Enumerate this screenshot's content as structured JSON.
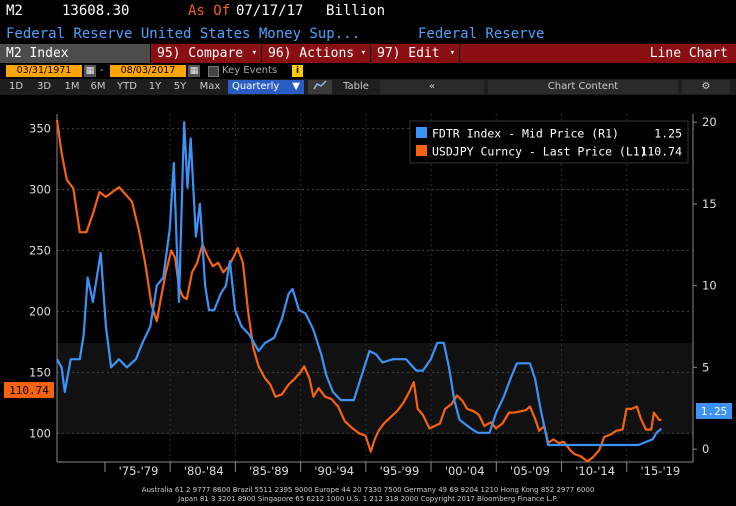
{
  "header": {
    "ticker": "M2",
    "value": "13608.30",
    "as_of_label": "As Of",
    "as_of_date": "07/17/17",
    "unit": "Billion",
    "description": "Federal Reserve United States Money Sup...",
    "source": "Federal Reserve"
  },
  "toolbar": {
    "security": "M2 Index",
    "compare": "95) Compare",
    "actions": "96) Actions",
    "edit": "97) Edit",
    "chart_type": "Line Chart"
  },
  "date_bar": {
    "start": "03/31/1971",
    "end": "08/03/2017",
    "key_events": "Key Events"
  },
  "period_bar": {
    "buttons": [
      "1D",
      "3D",
      "1M",
      "6M",
      "YTD",
      "1Y",
      "5Y",
      "Max"
    ],
    "frequency": "Quarterly",
    "table": "Table",
    "back": "«",
    "chart_content": "Chart Content",
    "settings_icon": "gear-icon"
  },
  "legend": [
    {
      "label": "FDTR Index - Mid Price (R1)",
      "value": "1.25",
      "color": "#3d93f5"
    },
    {
      "label": "USDJPY Curncy - Last Price (L1)",
      "value": "110.74",
      "color": "#f5630f"
    }
  ],
  "badges": {
    "left": "110.74",
    "right": "1.25"
  },
  "colors": {
    "blue": "#3d93f5",
    "orange": "#f5630f",
    "header_red": "#8a0f13",
    "accent_blue": "#4aa3ff",
    "amber": "#ffa500"
  },
  "footer": {
    "line1": "Australia 61 2 9777 8600 Brazil 5511 2395 9000 Europe 44 20 7330 7500 Germany 49 69 9204 1210 Hong Kong 852 2977 6000",
    "line2": "Japan 81 3 3201 8900        Singapore 65 6212 1000        U.S. 1 212 318 2000        Copyright 2017 Bloomberg Finance L.P."
  },
  "chart_data": {
    "type": "line",
    "x_range": [
      1971.25,
      2020.0
    ],
    "x_ticks": [
      "'75-'79",
      "'80-'84",
      "'85-'89",
      "'90-'94",
      "'95-'99",
      "'00-'04",
      "'05-'09",
      "'10-'14",
      "'15-'19"
    ],
    "left_axis": {
      "range": [
        83,
        362
      ],
      "ticks": [
        100,
        150,
        200,
        250,
        300,
        350
      ]
    },
    "right_axis": {
      "range": [
        -0.3,
        20.5
      ],
      "ticks": [
        0,
        5,
        10,
        15,
        20
      ]
    },
    "series": [
      {
        "name": "USDJPY Curncy - Last Price (L1)",
        "axis": "left",
        "color": "#f5630f",
        "points": [
          [
            1971.25,
            357
          ],
          [
            1971.6,
            330
          ],
          [
            1972.0,
            308
          ],
          [
            1972.5,
            301
          ],
          [
            1973.0,
            265
          ],
          [
            1973.5,
            265
          ],
          [
            1974.0,
            280
          ],
          [
            1974.5,
            298
          ],
          [
            1975.0,
            294
          ],
          [
            1975.5,
            298
          ],
          [
            1976.0,
            302
          ],
          [
            1976.5,
            296
          ],
          [
            1977.0,
            290
          ],
          [
            1977.5,
            268
          ],
          [
            1978.0,
            240
          ],
          [
            1978.5,
            205
          ],
          [
            1978.9,
            192
          ],
          [
            1979.2,
            210
          ],
          [
            1979.6,
            232
          ],
          [
            1980.0,
            250
          ],
          [
            1980.3,
            244
          ],
          [
            1980.6,
            220
          ],
          [
            1980.9,
            212
          ],
          [
            1981.2,
            210
          ],
          [
            1981.6,
            232
          ],
          [
            1982.0,
            240
          ],
          [
            1982.4,
            255
          ],
          [
            1982.8,
            245
          ],
          [
            1983.2,
            237
          ],
          [
            1983.6,
            240
          ],
          [
            1984.0,
            232
          ],
          [
            1984.4,
            237
          ],
          [
            1984.8,
            245
          ],
          [
            1985.1,
            252
          ],
          [
            1985.5,
            240
          ],
          [
            1985.9,
            200
          ],
          [
            1986.3,
            170
          ],
          [
            1986.7,
            155
          ],
          [
            1987.2,
            145
          ],
          [
            1987.6,
            140
          ],
          [
            1988.0,
            130
          ],
          [
            1988.5,
            132
          ],
          [
            1989.0,
            140
          ],
          [
            1989.5,
            145
          ],
          [
            1989.9,
            150
          ],
          [
            1990.2,
            155
          ],
          [
            1990.6,
            145
          ],
          [
            1990.9,
            130
          ],
          [
            1991.3,
            137
          ],
          [
            1991.8,
            130
          ],
          [
            1992.3,
            128
          ],
          [
            1992.8,
            122
          ],
          [
            1993.3,
            110
          ],
          [
            1993.8,
            105
          ],
          [
            1994.4,
            100
          ],
          [
            1994.9,
            98
          ],
          [
            1995.3,
            85
          ],
          [
            1995.6,
            95
          ],
          [
            1995.9,
            102
          ],
          [
            1996.3,
            108
          ],
          [
            1996.8,
            113
          ],
          [
            1997.3,
            118
          ],
          [
            1997.8,
            125
          ],
          [
            1998.3,
            135
          ],
          [
            1998.6,
            142
          ],
          [
            1998.9,
            120
          ],
          [
            1999.3,
            115
          ],
          [
            1999.8,
            104
          ],
          [
            2000.2,
            106
          ],
          [
            2000.6,
            108
          ],
          [
            2001.0,
            120
          ],
          [
            2001.5,
            124
          ],
          [
            2001.9,
            131
          ],
          [
            2002.3,
            127
          ],
          [
            2002.7,
            120
          ],
          [
            2003.2,
            118
          ],
          [
            2003.6,
            115
          ],
          [
            2004.0,
            106
          ],
          [
            2004.5,
            109
          ],
          [
            2004.9,
            104
          ],
          [
            2005.4,
            108
          ],
          [
            2005.9,
            117
          ],
          [
            2006.3,
            117
          ],
          [
            2006.8,
            118
          ],
          [
            2007.2,
            119
          ],
          [
            2007.5,
            122
          ],
          [
            2007.9,
            112
          ],
          [
            2008.2,
            102
          ],
          [
            2008.6,
            106
          ],
          [
            2008.9,
            92
          ],
          [
            2009.3,
            95
          ],
          [
            2009.7,
            92
          ],
          [
            2010.1,
            93
          ],
          [
            2010.6,
            86
          ],
          [
            2010.9,
            83
          ],
          [
            2011.4,
            81
          ],
          [
            2011.9,
            77
          ],
          [
            2012.3,
            80
          ],
          [
            2012.8,
            86
          ],
          [
            2013.2,
            97
          ],
          [
            2013.7,
            99
          ],
          [
            2014.1,
            102
          ],
          [
            2014.6,
            103
          ],
          [
            2014.9,
            120
          ],
          [
            2015.3,
            120
          ],
          [
            2015.7,
            122
          ],
          [
            2016.0,
            112
          ],
          [
            2016.4,
            103
          ],
          [
            2016.8,
            103
          ],
          [
            2017.0,
            117
          ],
          [
            2017.4,
            111
          ],
          [
            2017.58,
            111
          ]
        ]
      },
      {
        "name": "FDTR Index - Mid Price (R1)",
        "axis": "right",
        "color": "#3d93f5",
        "points": [
          [
            1971.25,
            5.5
          ],
          [
            1971.6,
            5.0
          ],
          [
            1971.85,
            3.5
          ],
          [
            1972.3,
            5.5
          ],
          [
            1973.0,
            5.5
          ],
          [
            1973.3,
            7.0
          ],
          [
            1973.6,
            10.5
          ],
          [
            1974.0,
            9.0
          ],
          [
            1974.6,
            12.0
          ],
          [
            1975.0,
            7.5
          ],
          [
            1975.4,
            5.0
          ],
          [
            1976.0,
            5.5
          ],
          [
            1976.6,
            5.0
          ],
          [
            1977.3,
            5.5
          ],
          [
            1977.8,
            6.5
          ],
          [
            1978.4,
            7.5
          ],
          [
            1978.9,
            10.0
          ],
          [
            1979.4,
            10.5
          ],
          [
            1979.9,
            13.5
          ],
          [
            1980.2,
            17.5
          ],
          [
            1980.45,
            12.0
          ],
          [
            1980.6,
            9.0
          ],
          [
            1980.9,
            17.5
          ],
          [
            1981.0,
            20.0
          ],
          [
            1981.25,
            16.0
          ],
          [
            1981.5,
            19.0
          ],
          [
            1981.9,
            13.0
          ],
          [
            1982.2,
            15.0
          ],
          [
            1982.6,
            10.0
          ],
          [
            1982.9,
            8.5
          ],
          [
            1983.3,
            8.5
          ],
          [
            1983.8,
            9.5
          ],
          [
            1984.2,
            10.0
          ],
          [
            1984.5,
            11.5
          ],
          [
            1984.9,
            8.5
          ],
          [
            1985.4,
            7.5
          ],
          [
            1986.0,
            7.0
          ],
          [
            1986.7,
            6.0
          ],
          [
            1987.2,
            6.5
          ],
          [
            1987.9,
            6.8
          ],
          [
            1988.5,
            8.0
          ],
          [
            1989.0,
            9.5
          ],
          [
            1989.3,
            9.8
          ],
          [
            1989.8,
            8.5
          ],
          [
            1990.3,
            8.3
          ],
          [
            1990.9,
            7.3
          ],
          [
            1991.5,
            5.8
          ],
          [
            1991.9,
            4.5
          ],
          [
            1992.4,
            3.5
          ],
          [
            1993.0,
            3.0
          ],
          [
            1994.0,
            3.0
          ],
          [
            1994.4,
            4.0
          ],
          [
            1994.8,
            5.0
          ],
          [
            1995.2,
            6.0
          ],
          [
            1995.7,
            5.8
          ],
          [
            1996.2,
            5.3
          ],
          [
            1997.0,
            5.5
          ],
          [
            1998.0,
            5.5
          ],
          [
            1998.8,
            4.8
          ],
          [
            1999.3,
            4.8
          ],
          [
            1999.9,
            5.5
          ],
          [
            2000.4,
            6.5
          ],
          [
            2000.9,
            6.5
          ],
          [
            2001.3,
            5.0
          ],
          [
            2001.7,
            3.0
          ],
          [
            2002.1,
            1.8
          ],
          [
            2002.9,
            1.3
          ],
          [
            2003.5,
            1.0
          ],
          [
            2004.4,
            1.0
          ],
          [
            2004.9,
            2.2
          ],
          [
            2005.5,
            3.2
          ],
          [
            2006.0,
            4.3
          ],
          [
            2006.5,
            5.25
          ],
          [
            2007.5,
            5.25
          ],
          [
            2007.9,
            4.3
          ],
          [
            2008.3,
            2.5
          ],
          [
            2008.9,
            0.25
          ],
          [
            2015.8,
            0.25
          ],
          [
            2016.9,
            0.6
          ],
          [
            2017.2,
            1.0
          ],
          [
            2017.58,
            1.25
          ]
        ]
      }
    ]
  }
}
